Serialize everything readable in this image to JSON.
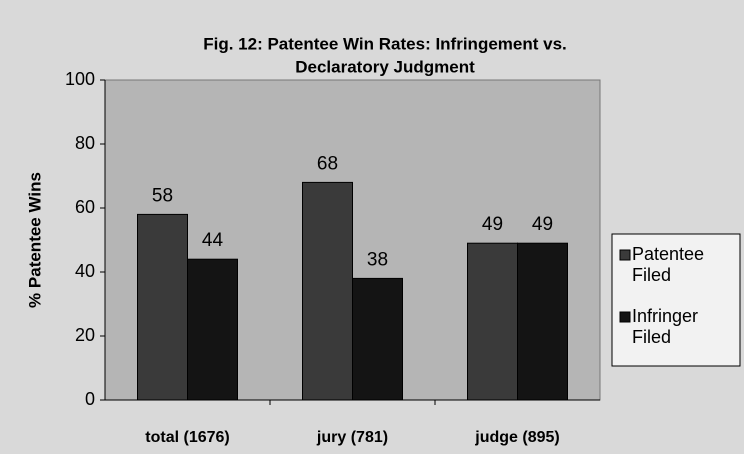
{
  "chart_data": {
    "type": "bar",
    "title": [
      "Fig. 12:  Patentee Win Rates:  Infringement vs.",
      "Declaratory Judgment"
    ],
    "ylabel": "% Patentee Wins",
    "categories": [
      "total (1676)",
      "jury (781)",
      "judge (895)"
    ],
    "series": [
      {
        "name": "Patentee Filed",
        "color": "#3a3a3a",
        "values": [
          58,
          68,
          49
        ]
      },
      {
        "name": "Infringer Filed",
        "color": "#141414",
        "values": [
          44,
          38,
          49
        ]
      }
    ],
    "ylim": [
      0,
      100
    ],
    "yticks": [
      0,
      20,
      40,
      60,
      80,
      100
    ],
    "grid": false,
    "legend": "right"
  }
}
